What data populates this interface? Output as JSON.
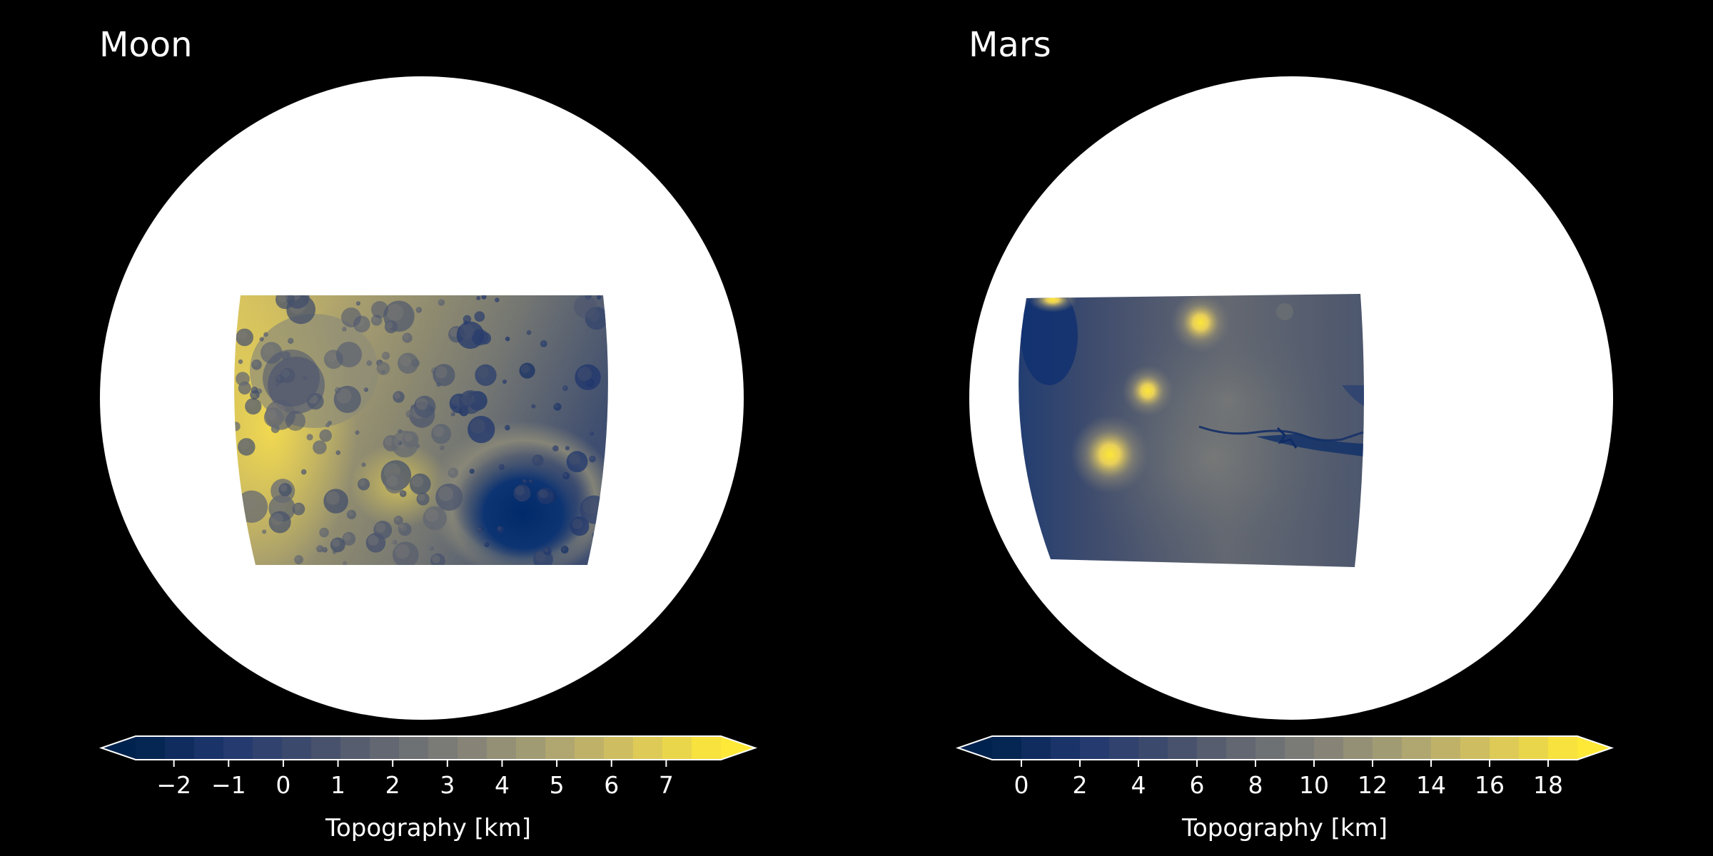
{
  "chart_data": [
    {
      "type": "heatmap",
      "title": "Moon",
      "colormap": "cividis",
      "colorbar": {
        "label": "Topography [km]",
        "vmin": -2.7,
        "vmax": 8.0,
        "ticks": [
          "−2",
          "−1",
          "0",
          "1",
          "2",
          "3",
          "4",
          "5",
          "6",
          "7"
        ],
        "tick_values": [
          -2,
          -1,
          0,
          1,
          2,
          3,
          4,
          5,
          6,
          7
        ],
        "n_levels": 20,
        "extend": "both",
        "orientation": "horizontal"
      },
      "features": [
        {
          "kind": "basin",
          "value": -2.5
        },
        {
          "kind": "basin-ring",
          "value": 2.5
        },
        {
          "kind": "crater",
          "value": 2.5
        },
        {
          "kind": "highland",
          "value": 6.5
        }
      ]
    },
    {
      "type": "heatmap",
      "title": "Mars",
      "colormap": "cividis",
      "colorbar": {
        "label": "Topography [km]",
        "vmin": -1.0,
        "vmax": 19.0,
        "ticks": [
          "0",
          "2",
          "4",
          "6",
          "8",
          "10",
          "12",
          "14",
          "16",
          "18"
        ],
        "tick_values": [
          0,
          2,
          4,
          6,
          8,
          10,
          12,
          14,
          16,
          18
        ],
        "n_levels": 20,
        "extend": "both",
        "orientation": "horizontal"
      },
      "features": [
        {
          "kind": "volcano",
          "value": 18
        },
        {
          "kind": "volcano",
          "value": 17
        },
        {
          "kind": "volcano",
          "value": 15
        },
        {
          "kind": "canyon",
          "value": 0
        },
        {
          "kind": "plateau",
          "value": 8
        }
      ]
    }
  ]
}
